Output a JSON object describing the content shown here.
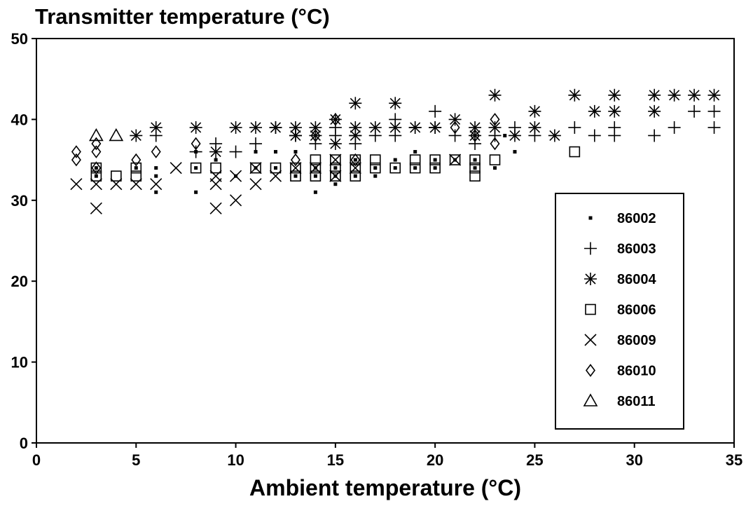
{
  "chart_data": {
    "type": "scatter",
    "title": "Transmitter temperature (°C)",
    "xlabel": "Ambient temperature (°C)",
    "ylabel": "",
    "xlim": [
      0,
      35
    ],
    "ylim": [
      0,
      50
    ],
    "x_ticks": [
      0,
      5,
      10,
      15,
      20,
      25,
      30,
      35
    ],
    "y_ticks": [
      0,
      10,
      20,
      30,
      40,
      50
    ],
    "grid": false,
    "legend_position": "bottom-right",
    "series": [
      {
        "name": "86002",
        "marker": "small-square",
        "points": [
          [
            3,
            33
          ],
          [
            3,
            34
          ],
          [
            5,
            34
          ],
          [
            6,
            31
          ],
          [
            6,
            33
          ],
          [
            6,
            34
          ],
          [
            8,
            31
          ],
          [
            8,
            34
          ],
          [
            8,
            36
          ],
          [
            9,
            35
          ],
          [
            10,
            33
          ],
          [
            11,
            34
          ],
          [
            11,
            36
          ],
          [
            12,
            34
          ],
          [
            12,
            36
          ],
          [
            13,
            33
          ],
          [
            13,
            36
          ],
          [
            14,
            31
          ],
          [
            14,
            33
          ],
          [
            14,
            34
          ],
          [
            15,
            32
          ],
          [
            15,
            33
          ],
          [
            15,
            34
          ],
          [
            16,
            33
          ],
          [
            16,
            35
          ],
          [
            17,
            33
          ],
          [
            17,
            34
          ],
          [
            18,
            34
          ],
          [
            18,
            35
          ],
          [
            19,
            34
          ],
          [
            19,
            36
          ],
          [
            20,
            34
          ],
          [
            20,
            35
          ],
          [
            21,
            35
          ],
          [
            22,
            34
          ],
          [
            22,
            35
          ],
          [
            23,
            34
          ],
          [
            23.5,
            38
          ],
          [
            24,
            36
          ]
        ]
      },
      {
        "name": "86003",
        "marker": "plus",
        "points": [
          [
            6,
            38
          ],
          [
            8,
            36
          ],
          [
            9,
            37
          ],
          [
            10,
            36
          ],
          [
            11,
            37
          ],
          [
            12,
            39
          ],
          [
            13,
            38
          ],
          [
            14,
            37
          ],
          [
            15,
            38
          ],
          [
            15,
            39
          ],
          [
            16,
            37
          ],
          [
            16,
            38
          ],
          [
            17,
            38
          ],
          [
            18,
            38
          ],
          [
            18,
            40
          ],
          [
            19,
            39
          ],
          [
            20,
            41
          ],
          [
            20,
            39
          ],
          [
            21,
            38
          ],
          [
            22,
            37
          ],
          [
            23,
            38
          ],
          [
            24,
            39
          ],
          [
            25,
            38
          ],
          [
            27,
            39
          ],
          [
            28,
            38
          ],
          [
            29,
            38
          ],
          [
            29,
            39
          ],
          [
            31,
            38
          ],
          [
            32,
            39
          ],
          [
            33,
            41
          ],
          [
            34,
            39
          ],
          [
            34,
            41
          ]
        ]
      },
      {
        "name": "86004",
        "marker": "asterisk",
        "points": [
          [
            5,
            38
          ],
          [
            6,
            39
          ],
          [
            8,
            39
          ],
          [
            9,
            36
          ],
          [
            10,
            39
          ],
          [
            11,
            39
          ],
          [
            12,
            39
          ],
          [
            13,
            39
          ],
          [
            13,
            38
          ],
          [
            14,
            39
          ],
          [
            14,
            38
          ],
          [
            15,
            40
          ],
          [
            15,
            37
          ],
          [
            16,
            39
          ],
          [
            16,
            42
          ],
          [
            16,
            38
          ],
          [
            17,
            39
          ],
          [
            18,
            42
          ],
          [
            18,
            39
          ],
          [
            19,
            39
          ],
          [
            20,
            39
          ],
          [
            21,
            40
          ],
          [
            22,
            39
          ],
          [
            22,
            38
          ],
          [
            23,
            43
          ],
          [
            23,
            39
          ],
          [
            24,
            38
          ],
          [
            25,
            41
          ],
          [
            25,
            39
          ],
          [
            26,
            38
          ],
          [
            27,
            43
          ],
          [
            28,
            41
          ],
          [
            29,
            43
          ],
          [
            29,
            41
          ],
          [
            31,
            43
          ],
          [
            31,
            41
          ],
          [
            32,
            43
          ],
          [
            33,
            43
          ],
          [
            34,
            43
          ]
        ]
      },
      {
        "name": "86006",
        "marker": "square",
        "points": [
          [
            3,
            34
          ],
          [
            3,
            33
          ],
          [
            4,
            33
          ],
          [
            5,
            34
          ],
          [
            5,
            33
          ],
          [
            8,
            34
          ],
          [
            9,
            34
          ],
          [
            11,
            34
          ],
          [
            12,
            34
          ],
          [
            13,
            34
          ],
          [
            13,
            33
          ],
          [
            14,
            35
          ],
          [
            14,
            34
          ],
          [
            14,
            33
          ],
          [
            15,
            35
          ],
          [
            15,
            34
          ],
          [
            15,
            33
          ],
          [
            16,
            35
          ],
          [
            16,
            34
          ],
          [
            16,
            33
          ],
          [
            17,
            35
          ],
          [
            17,
            34
          ],
          [
            18,
            34
          ],
          [
            19,
            34
          ],
          [
            19,
            35
          ],
          [
            20,
            34
          ],
          [
            20,
            35
          ],
          [
            21,
            35
          ],
          [
            22,
            35
          ],
          [
            22,
            34
          ],
          [
            22,
            33
          ],
          [
            23,
            35
          ],
          [
            27,
            36
          ]
        ]
      },
      {
        "name": "86009",
        "marker": "x",
        "points": [
          [
            2,
            32
          ],
          [
            3,
            29
          ],
          [
            3,
            32
          ],
          [
            4,
            32
          ],
          [
            5,
            32
          ],
          [
            6,
            32
          ],
          [
            7,
            34
          ],
          [
            9,
            29
          ],
          [
            9,
            32
          ],
          [
            9,
            33
          ],
          [
            10,
            30
          ],
          [
            10,
            33
          ],
          [
            11,
            32
          ],
          [
            11,
            34
          ],
          [
            12,
            33
          ],
          [
            13,
            34
          ],
          [
            14,
            34
          ],
          [
            15,
            35
          ],
          [
            15,
            33
          ],
          [
            16,
            34
          ],
          [
            21,
            35
          ]
        ]
      },
      {
        "name": "86010",
        "marker": "diamond",
        "points": [
          [
            2,
            36
          ],
          [
            2,
            35
          ],
          [
            3,
            37
          ],
          [
            3,
            36
          ],
          [
            3,
            34
          ],
          [
            5,
            35
          ],
          [
            6,
            36
          ],
          [
            8,
            37
          ],
          [
            13,
            35
          ],
          [
            14,
            38
          ],
          [
            15,
            40
          ],
          [
            16,
            35
          ],
          [
            21,
            39
          ],
          [
            22,
            38
          ],
          [
            23,
            40
          ],
          [
            23,
            37
          ]
        ]
      },
      {
        "name": "86011",
        "marker": "triangle",
        "points": [
          [
            3,
            38
          ],
          [
            4,
            38
          ]
        ]
      }
    ]
  },
  "colors": {
    "ink": "#000000",
    "background": "#ffffff"
  }
}
